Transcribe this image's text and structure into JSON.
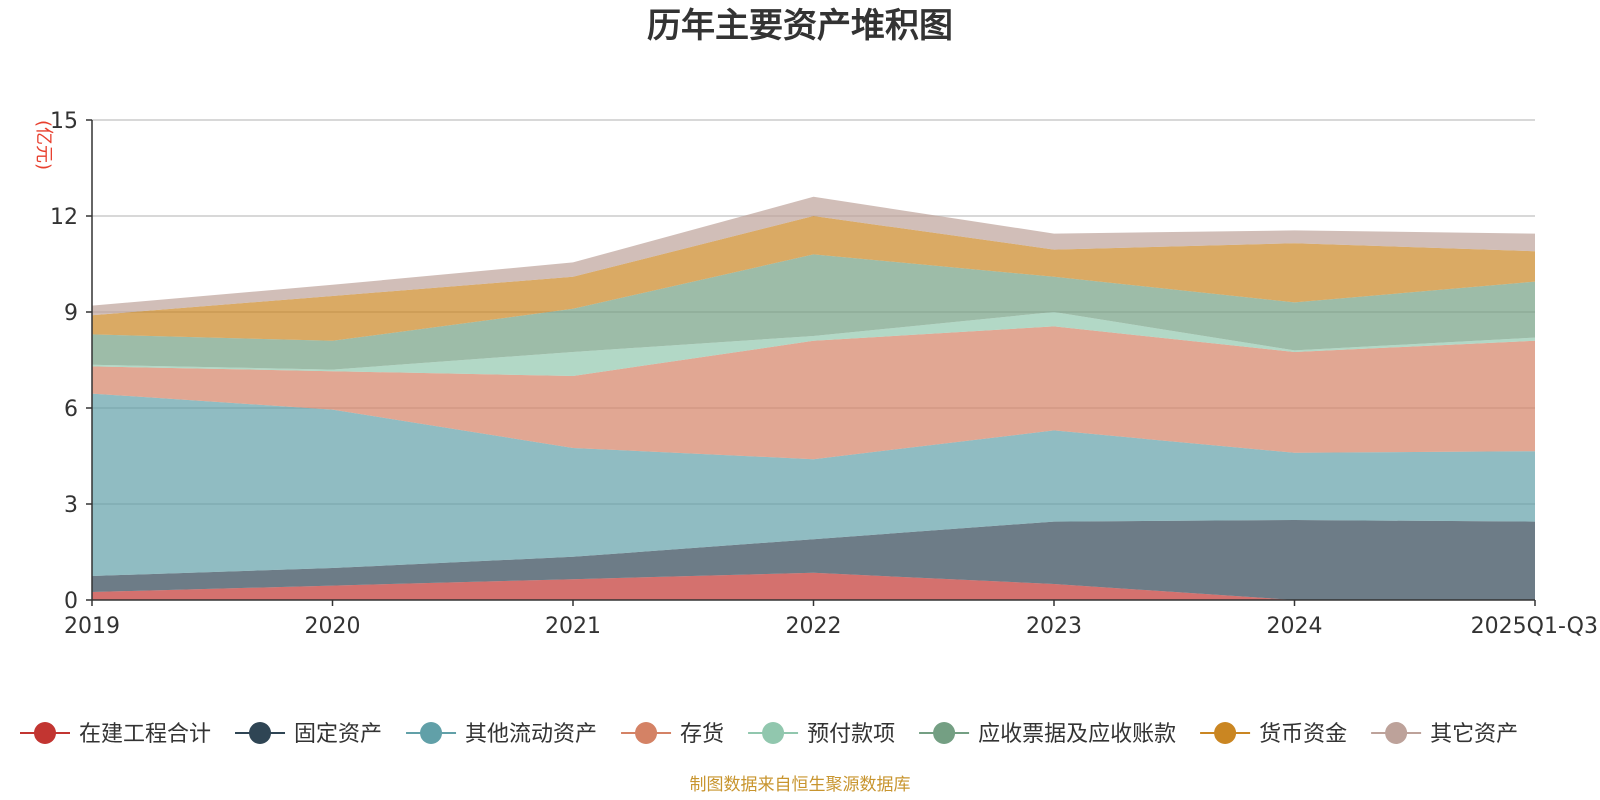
{
  "chart_data": {
    "type": "area",
    "stacked": true,
    "title": "历年主要资产堆积图",
    "ylabel": "(亿元)",
    "xlabel": "",
    "categories": [
      "2019",
      "2020",
      "2021",
      "2022",
      "2023",
      "2024",
      "2025Q1-Q3"
    ],
    "ylim": [
      0,
      15
    ],
    "yticks": [
      0,
      3,
      6,
      9,
      12,
      15
    ],
    "grid": true,
    "legend_position": "bottom",
    "source_note": "制图数据来自恒生聚源数据库",
    "series": [
      {
        "name": "在建工程合计",
        "color": "#c23531",
        "values": [
          0.25,
          0.45,
          0.65,
          0.85,
          0.5,
          0.0,
          0.0
        ]
      },
      {
        "name": "固定资产",
        "color": "#2f4554",
        "values": [
          0.5,
          0.55,
          0.7,
          1.05,
          1.95,
          2.5,
          2.45
        ]
      },
      {
        "name": "其他流动资产",
        "color": "#61a0a8",
        "values": [
          5.7,
          4.95,
          3.4,
          2.5,
          2.85,
          2.1,
          2.2
        ]
      },
      {
        "name": "存货",
        "color": "#d48265",
        "values": [
          0.85,
          1.2,
          2.25,
          3.7,
          3.25,
          3.15,
          3.45
        ]
      },
      {
        "name": "预付款项",
        "color": "#91c7ae",
        "values": [
          0.05,
          0.05,
          0.75,
          0.15,
          0.45,
          0.05,
          0.1
        ]
      },
      {
        "name": "应收票据及应收账款",
        "color": "#749f83",
        "values": [
          0.95,
          0.9,
          1.35,
          2.55,
          1.1,
          1.5,
          1.75
        ]
      },
      {
        "name": "货币资金",
        "color": "#ca8622",
        "values": [
          0.6,
          1.4,
          1.0,
          1.2,
          0.85,
          1.85,
          0.95
        ]
      },
      {
        "name": "其它资产",
        "color": "#bda29a",
        "values": [
          0.3,
          0.35,
          0.45,
          0.6,
          0.5,
          0.4,
          0.55
        ]
      }
    ]
  }
}
